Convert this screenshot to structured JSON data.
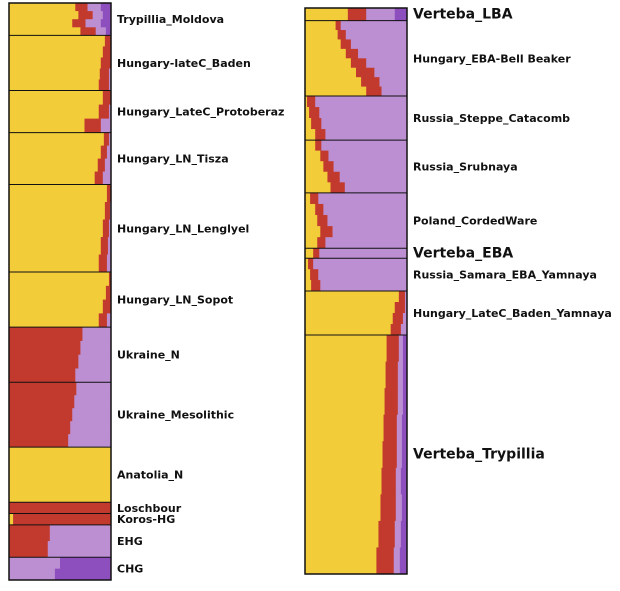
{
  "colors": {
    "yellow": "#f3cc3a",
    "red": "#c23a2d",
    "lilac": "#bb8fd2",
    "purple": "#8e4fbe",
    "border": "#111111"
  },
  "chart_data": [
    {
      "type": "admixture-barplot",
      "component_order": [
        "yellow",
        "red",
        "lilac",
        "purple"
      ],
      "populations": [
        {
          "label": "Trypillia_Moldova",
          "size": 1.0,
          "highlight": false,
          "individuals": [
            [
              0.65,
              0.12,
              0.13,
              0.1
            ],
            [
              0.68,
              0.14,
              0.1,
              0.08
            ],
            [
              0.62,
              0.13,
              0.15,
              0.1
            ],
            [
              0.7,
              0.15,
              0.1,
              0.05
            ]
          ]
        },
        {
          "label": "Hungary-lateC_Baden",
          "size": 1.7,
          "highlight": false,
          "individuals": [
            [
              0.94,
              0.06,
              0,
              0
            ],
            [
              0.92,
              0.08,
              0,
              0
            ],
            [
              0.9,
              0.1,
              0,
              0
            ],
            [
              0.89,
              0.09,
              0.02,
              0
            ],
            [
              0.88,
              0.1,
              0.02,
              0
            ]
          ]
        },
        {
          "label": "Hungary_LateC_Protoberaz",
          "size": 1.3,
          "highlight": false,
          "individuals": [
            [
              0.92,
              0.08,
              0,
              0
            ],
            [
              0.88,
              0.1,
              0.02,
              0
            ],
            [
              0.74,
              0.16,
              0.1,
              0
            ]
          ]
        },
        {
          "label": "Hungary_LN_Tisza",
          "size": 1.6,
          "highlight": false,
          "individuals": [
            [
              0.93,
              0.05,
              0.02,
              0
            ],
            [
              0.9,
              0.06,
              0.04,
              0
            ],
            [
              0.87,
              0.07,
              0.06,
              0
            ],
            [
              0.84,
              0.08,
              0.08,
              0
            ]
          ]
        },
        {
          "label": "Hungary_LN_Lenglyel",
          "size": 2.7,
          "highlight": false,
          "individuals": [
            [
              0.96,
              0.04,
              0,
              0
            ],
            [
              0.94,
              0.05,
              0.01,
              0
            ],
            [
              0.92,
              0.06,
              0.02,
              0
            ],
            [
              0.9,
              0.07,
              0.03,
              0
            ],
            [
              0.88,
              0.08,
              0.04,
              0
            ]
          ]
        },
        {
          "label": "Hungary_LN_Sopot",
          "size": 1.7,
          "highlight": false,
          "individuals": [
            [
              0.98,
              0.02,
              0,
              0
            ],
            [
              0.95,
              0.05,
              0,
              0
            ],
            [
              0.92,
              0.08,
              0,
              0
            ],
            [
              0.88,
              0.08,
              0.04,
              0
            ]
          ]
        },
        {
          "label": "Ukraine_N",
          "size": 1.7,
          "highlight": false,
          "individuals": [
            [
              0,
              0.72,
              0.28,
              0
            ],
            [
              0,
              0.7,
              0.3,
              0
            ],
            [
              0,
              0.68,
              0.32,
              0
            ],
            [
              0,
              0.65,
              0.35,
              0
            ]
          ]
        },
        {
          "label": "Ukraine_Mesolithic",
          "size": 2.0,
          "highlight": false,
          "individuals": [
            [
              0,
              0.66,
              0.34,
              0
            ],
            [
              0,
              0.64,
              0.36,
              0
            ],
            [
              0,
              0.62,
              0.38,
              0
            ],
            [
              0,
              0.6,
              0.4,
              0
            ],
            [
              0,
              0.58,
              0.42,
              0
            ]
          ]
        },
        {
          "label": "Anatolia_N",
          "size": 1.7,
          "highlight": false,
          "individuals": [
            [
              1,
              0,
              0,
              0
            ]
          ]
        },
        {
          "label": "Loschbour",
          "size": 0.35,
          "highlight": false,
          "individuals": [
            [
              0,
              1,
              0,
              0
            ]
          ]
        },
        {
          "label": "Koros-HG",
          "size": 0.35,
          "highlight": false,
          "individuals": [
            [
              0.04,
              0.96,
              0,
              0
            ]
          ]
        },
        {
          "label": "EHG",
          "size": 1.0,
          "highlight": false,
          "individuals": [
            [
              0,
              0.4,
              0.6,
              0
            ],
            [
              0,
              0.38,
              0.62,
              0
            ]
          ]
        },
        {
          "label": "CHG",
          "size": 0.7,
          "highlight": false,
          "individuals": [
            [
              0,
              0,
              0.5,
              0.5
            ],
            [
              0,
              0,
              0.45,
              0.55
            ]
          ]
        }
      ]
    },
    {
      "type": "admixture-barplot",
      "component_order": [
        "yellow",
        "red",
        "lilac",
        "purple"
      ],
      "populations": [
        {
          "label": "Verteba_LBA",
          "size": 1.0,
          "highlight": true,
          "individuals": [
            [
              0.42,
              0.18,
              0.28,
              0.12
            ]
          ]
        },
        {
          "label": "Hungary_EBA-Bell Beaker",
          "size": 6.0,
          "highlight": false,
          "individuals": [
            [
              0.3,
              0.05,
              0.65,
              0
            ],
            [
              0.32,
              0.08,
              0.6,
              0
            ],
            [
              0.35,
              0.1,
              0.55,
              0
            ],
            [
              0.4,
              0.12,
              0.48,
              0
            ],
            [
              0.45,
              0.15,
              0.4,
              0
            ],
            [
              0.5,
              0.18,
              0.32,
              0
            ],
            [
              0.55,
              0.18,
              0.27,
              0
            ],
            [
              0.6,
              0.15,
              0.25,
              0
            ]
          ]
        },
        {
          "label": "Russia_Steppe_Catacomb",
          "size": 3.5,
          "highlight": false,
          "individuals": [
            [
              0.02,
              0.08,
              0.9,
              0
            ],
            [
              0.04,
              0.1,
              0.86,
              0
            ],
            [
              0.06,
              0.1,
              0.84,
              0
            ],
            [
              0.1,
              0.1,
              0.8,
              0
            ]
          ]
        },
        {
          "label": "Russia_Srubnaya",
          "size": 4.2,
          "highlight": false,
          "individuals": [
            [
              0.1,
              0.06,
              0.84,
              0
            ],
            [
              0.15,
              0.08,
              0.77,
              0
            ],
            [
              0.18,
              0.1,
              0.72,
              0
            ],
            [
              0.22,
              0.12,
              0.66,
              0
            ],
            [
              0.25,
              0.14,
              0.61,
              0
            ]
          ]
        },
        {
          "label": "Poland_CordedWare",
          "size": 4.4,
          "highlight": false,
          "individuals": [
            [
              0.05,
              0.08,
              0.87,
              0
            ],
            [
              0.1,
              0.08,
              0.82,
              0
            ],
            [
              0.12,
              0.1,
              0.78,
              0
            ],
            [
              0.15,
              0.12,
              0.73,
              0
            ],
            [
              0.12,
              0.08,
              0.8,
              0
            ]
          ]
        },
        {
          "label": "Verteba_EBA",
          "size": 0.8,
          "highlight": true,
          "individuals": [
            [
              0.08,
              0.06,
              0.86,
              0
            ]
          ]
        },
        {
          "label": "Russia_Samara_EBA_Yamnaya",
          "size": 2.6,
          "highlight": false,
          "individuals": [
            [
              0.03,
              0.05,
              0.92,
              0
            ],
            [
              0.05,
              0.08,
              0.87,
              0
            ],
            [
              0.06,
              0.09,
              0.85,
              0
            ]
          ]
        },
        {
          "label": "Hungary_LateC_Baden_Yamnaya",
          "size": 3.5,
          "highlight": false,
          "individuals": [
            [
              0.92,
              0.06,
              0.02,
              0
            ],
            [
              0.88,
              0.1,
              0.02,
              0
            ],
            [
              0.86,
              0.1,
              0.04,
              0
            ],
            [
              0.84,
              0.1,
              0.06,
              0
            ]
          ]
        },
        {
          "label": "Verteba_Trypillia",
          "size": 19.0,
          "highlight": true,
          "individuals": [
            [
              0.8,
              0.12,
              0.04,
              0.04
            ],
            [
              0.79,
              0.12,
              0.05,
              0.04
            ],
            [
              0.78,
              0.13,
              0.05,
              0.04
            ],
            [
              0.77,
              0.13,
              0.05,
              0.05
            ],
            [
              0.76,
              0.14,
              0.05,
              0.05
            ],
            [
              0.75,
              0.14,
              0.05,
              0.06
            ],
            [
              0.74,
              0.15,
              0.06,
              0.05
            ],
            [
              0.72,
              0.16,
              0.06,
              0.06
            ],
            [
              0.7,
              0.17,
              0.06,
              0.07
            ]
          ]
        }
      ]
    }
  ]
}
